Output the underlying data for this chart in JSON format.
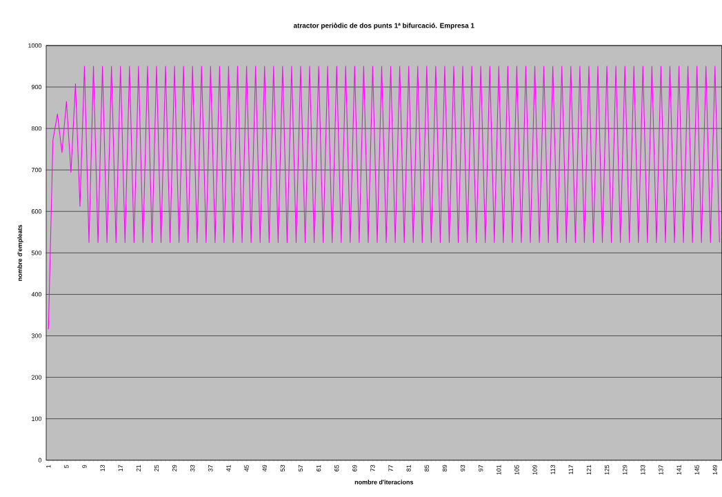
{
  "chart_data": {
    "type": "line",
    "title": "atractor periòdic de dos punts 1ª bifurcació. Empresa 1",
    "xlabel": "nombre d'iteracions",
    "ylabel": "nombre d'empleats",
    "categories": [
      "1",
      null,
      null,
      null,
      "5",
      null,
      null,
      null,
      "9",
      null,
      null,
      null,
      "13",
      null,
      null,
      null,
      "17",
      null,
      null,
      null,
      "21",
      null,
      null,
      null,
      "25",
      null,
      null,
      null,
      "29",
      null,
      null,
      null,
      "33",
      null,
      null,
      null,
      "37",
      null,
      null,
      null,
      "41",
      null,
      null,
      null,
      "45",
      null,
      null,
      null,
      "49",
      null,
      null,
      null,
      "53",
      null,
      null,
      null,
      "57",
      null,
      null,
      null,
      "61",
      null,
      null,
      null,
      "65",
      null,
      null,
      null,
      "69",
      null,
      null,
      null,
      "73",
      null,
      null,
      null,
      "77",
      null,
      null,
      null,
      "81",
      null,
      null,
      null,
      "85",
      null,
      null,
      null,
      "89",
      null,
      null,
      null,
      "93",
      null,
      null,
      null,
      "97",
      null,
      null,
      null,
      "101",
      null,
      null,
      null,
      "105",
      null,
      null,
      null,
      "109",
      null,
      null,
      null,
      "113",
      null,
      null,
      null,
      "117",
      null,
      null,
      null,
      "121",
      null,
      null,
      null,
      "125",
      null,
      null,
      null,
      "129",
      null,
      null,
      null,
      "133",
      null,
      null,
      null,
      "137",
      null,
      null,
      null,
      "141",
      null,
      null,
      null,
      "145",
      null,
      null,
      null,
      "149",
      null
    ],
    "series": [
      {
        "color": "#ff00ff",
        "values": [
          316,
          772,
          835,
          742,
          865,
          694,
          908,
          612,
          950,
          525,
          950,
          525,
          950,
          525,
          950,
          525,
          950,
          525,
          950,
          525,
          950,
          525,
          950,
          525,
          950,
          525,
          950,
          525,
          950,
          525,
          950,
          525,
          950,
          525,
          950,
          525,
          950,
          525,
          950,
          525,
          950,
          525,
          950,
          525,
          950,
          525,
          950,
          525,
          950,
          525,
          950,
          525,
          950,
          525,
          950,
          525,
          950,
          525,
          950,
          525,
          950,
          525,
          950,
          525,
          950,
          525,
          950,
          525,
          950,
          525,
          950,
          525,
          950,
          525,
          950,
          525,
          950,
          525,
          950,
          525,
          950,
          525,
          950,
          525,
          950,
          525,
          950,
          525,
          950,
          525,
          950,
          525,
          950,
          525,
          950,
          525,
          950,
          525,
          950,
          525,
          950,
          525,
          950,
          525,
          950,
          525,
          950,
          525,
          950,
          525,
          950,
          525,
          950,
          525,
          950,
          525,
          950,
          525,
          950,
          525,
          950,
          525,
          950,
          525,
          950,
          525,
          950,
          525,
          950,
          525,
          950,
          525,
          950,
          525,
          950,
          525,
          950,
          525,
          950,
          525,
          950,
          525,
          950,
          525,
          950,
          525,
          950,
          525,
          950,
          525
        ]
      }
    ],
    "ylim": [
      0,
      1000
    ],
    "yticks": [
      0,
      100,
      200,
      300,
      400,
      500,
      600,
      700,
      800,
      900,
      1000
    ],
    "grid": "y",
    "marker": "none",
    "line_style": "solid"
  }
}
